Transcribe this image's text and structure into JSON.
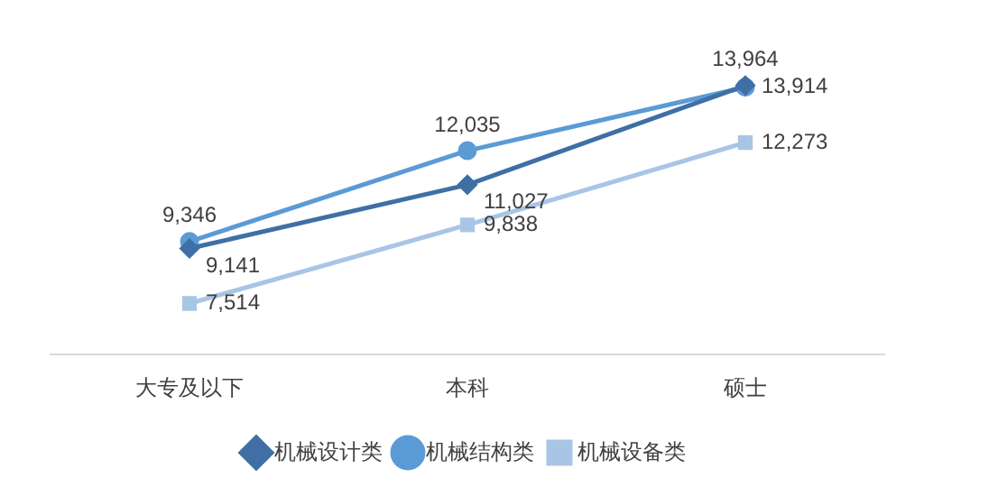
{
  "chart_data": {
    "type": "line",
    "categories": [
      "大专及以下",
      "本科",
      "硕士"
    ],
    "series": [
      {
        "name": "机械设计类",
        "color": "#3f6fa5",
        "values": [
          9141,
          11027,
          13964
        ],
        "value_labels": [
          "9,141",
          "11,027",
          "13,964"
        ],
        "marker": "diamond"
      },
      {
        "name": "机械结构类",
        "color": "#5b9bd5",
        "values": [
          9346,
          12035,
          13914
        ],
        "value_labels": [
          "9,346",
          "12,035",
          "13,914"
        ],
        "marker": "circle"
      },
      {
        "name": "机械设备类",
        "color": "#a9c5e6",
        "values": [
          7514,
          9838,
          12273
        ],
        "value_labels": [
          "7,514",
          "9,838",
          "12,273"
        ],
        "marker": "square"
      }
    ],
    "legend": "bottom",
    "grid": false,
    "tick_labels": "x"
  }
}
